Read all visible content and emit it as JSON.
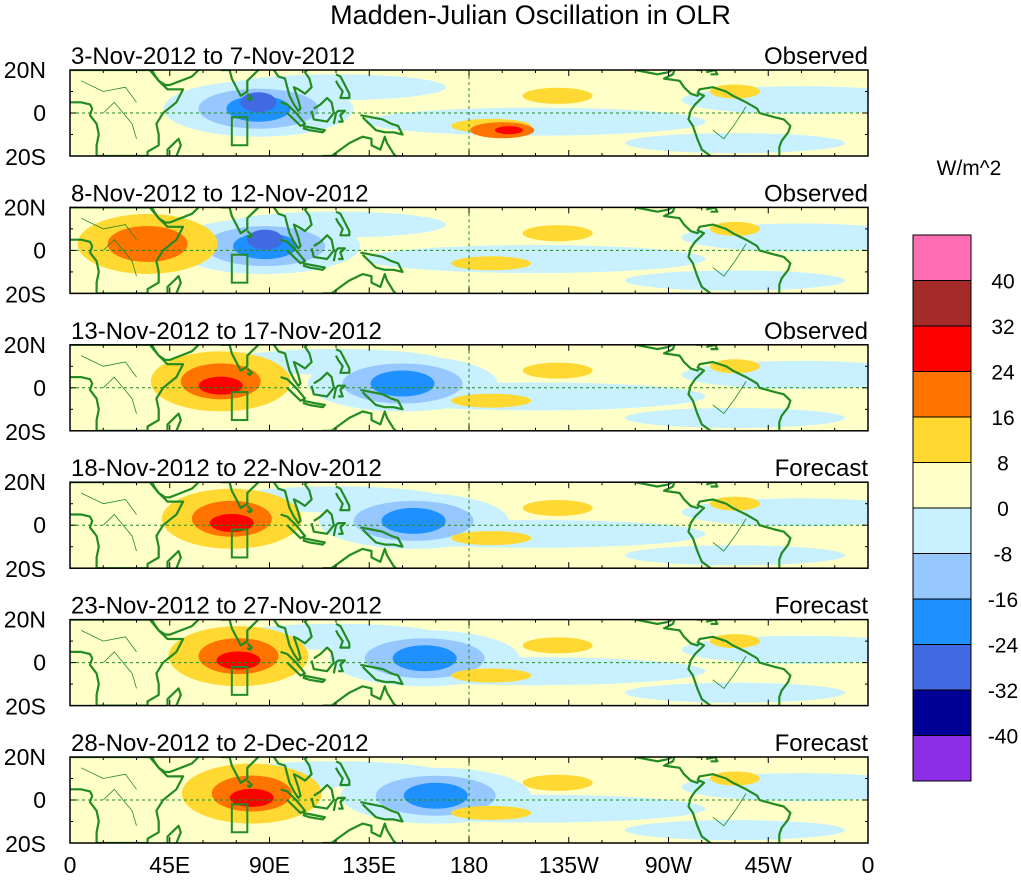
{
  "title": "Madden-Julian Oscillation in OLR",
  "units": "W/m^2",
  "y_ticks": [
    "20N",
    "0",
    "20S"
  ],
  "x_ticks": [
    "0",
    "45E",
    "90E",
    "135E",
    "180",
    "135W",
    "90W",
    "45W",
    "0"
  ],
  "panels": [
    {
      "date_range": "3-Nov-2012 to 7-Nov-2012",
      "kind": "Observed",
      "pos_center_lon": null,
      "neg_center_lon": 85
    },
    {
      "date_range": "8-Nov-2012 to 12-Nov-2012",
      "kind": "Observed",
      "pos_center_lon": 35,
      "neg_center_lon": 88
    },
    {
      "date_range": "13-Nov-2012 to 17-Nov-2012",
      "kind": "Observed",
      "pos_center_lon": 68,
      "neg_center_lon": 150
    },
    {
      "date_range": "18-Nov-2012 to 22-Nov-2012",
      "kind": "Forecast",
      "pos_center_lon": 73,
      "neg_center_lon": 155
    },
    {
      "date_range": "23-Nov-2012 to 27-Nov-2012",
      "kind": "Forecast",
      "pos_center_lon": 76,
      "neg_center_lon": 160
    },
    {
      "date_range": "28-Nov-2012 to 2-Dec-2012",
      "kind": "Forecast",
      "pos_center_lon": 82,
      "neg_center_lon": 165
    }
  ],
  "colorbar": {
    "labels": [
      "40",
      "32",
      "24",
      "16",
      "8",
      "0",
      "-8",
      "-16",
      "-24",
      "-32",
      "-40"
    ],
    "colors": [
      "#ff6eb4",
      "#a52a2a",
      "#ff0000",
      "#ff7300",
      "#ffd832",
      "#ffffc8",
      "#c8f0ff",
      "#96c8ff",
      "#1e90ff",
      "#4169e1",
      "#000096",
      "#8c2ee6"
    ]
  },
  "colors": {
    "coast": "#228B22",
    "dashed_grid": "#228B22",
    "box_outline": "#228B22"
  }
}
